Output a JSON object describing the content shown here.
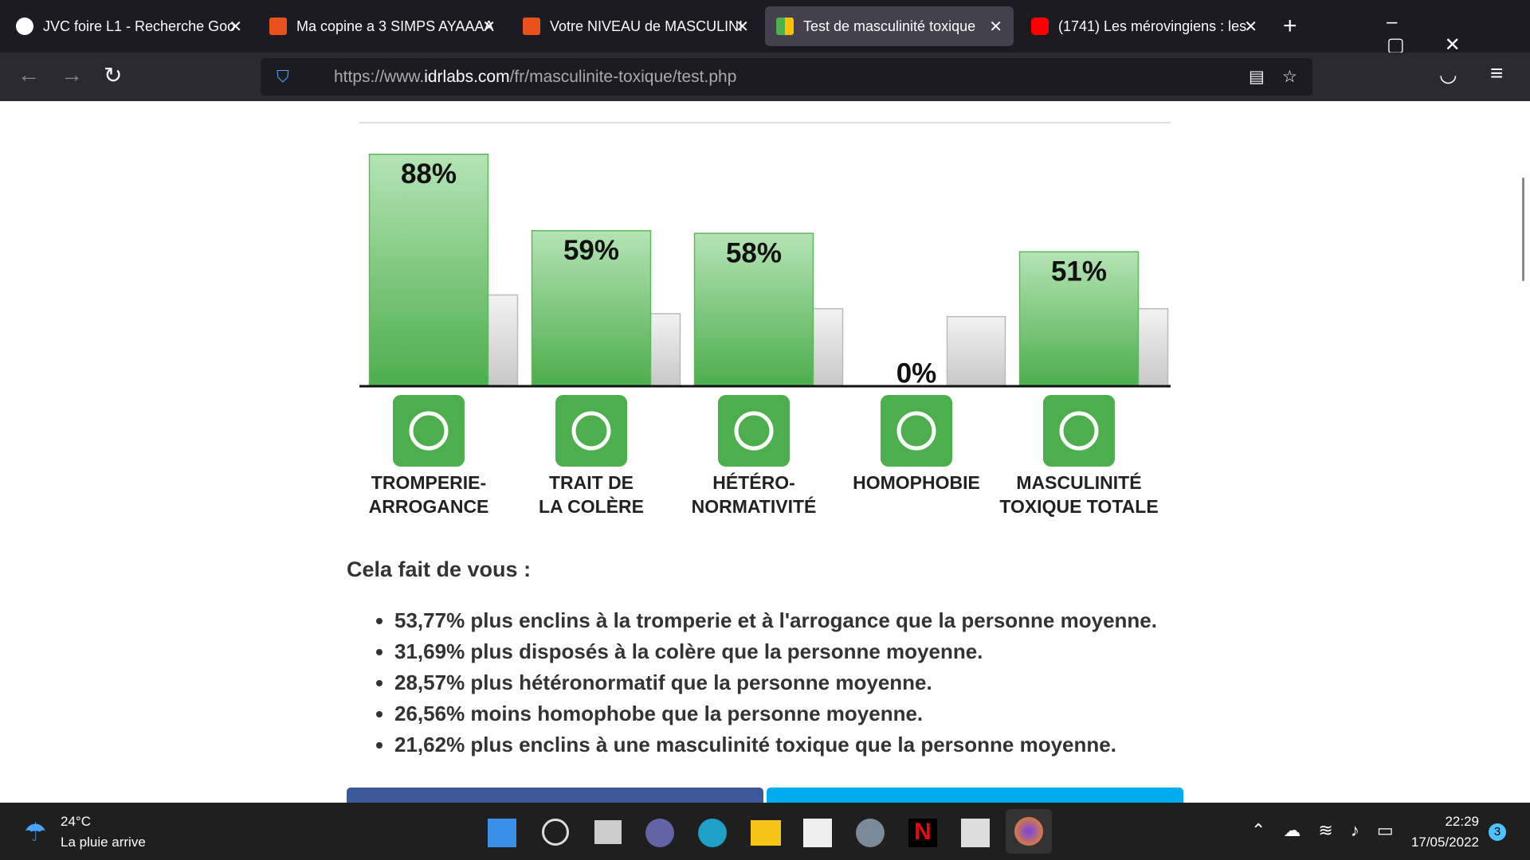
{
  "browser": {
    "tabs": [
      "JVC foire L1 - Recherche Goo",
      "Ma copine a 3 SIMPS AYAAAA",
      "Votre NIVEAU de MASCULINI",
      "Test de masculinité toxique",
      "(1741) Les mérovingiens : les"
    ],
    "url": {
      "scheme": "https://www.",
      "domain": "idrlabs.com",
      "path": "/fr/masculinite-toxique/test.php"
    }
  },
  "chart_data": {
    "type": "bar",
    "categories": [
      "TROMPERIE-\nARROGANCE",
      "TRAIT DE\nLA COLÈRE",
      "HÉTÉRO-\nNORMATIVITÉ",
      "HOMOPHOBIE",
      "MASCULINITÉ\nTOXIQUE TOTALE"
    ],
    "series": [
      {
        "color": "#4cae4c",
        "values": [
          88,
          59,
          58,
          0,
          51
        ],
        "value_labels": [
          "88%",
          "59%",
          "58%",
          "0%",
          "51%"
        ]
      },
      {
        "color": "#c8c8c8",
        "values": [
          34.6,
          27.5,
          29.4,
          26.4,
          29.4
        ]
      }
    ],
    "ylim": [
      0,
      100
    ]
  },
  "results": {
    "heading": "Cela fait de vous :",
    "items": [
      "53,77% plus enclins à la tromperie et à l'arrogance que la personne moyenne.",
      "31,69% plus disposés à la colère que la personne moyenne.",
      "28,57% plus hétéronormatif que la personne moyenne.",
      "26,56% moins homophobe que la personne moyenne.",
      "21,62% plus enclins à une masculinité toxique que la personne moyenne."
    ]
  },
  "taskbar": {
    "temperature": "24°C",
    "weather": "La pluie arrive",
    "time": "22:29",
    "date": "17/05/2022",
    "notifications": "3"
  }
}
